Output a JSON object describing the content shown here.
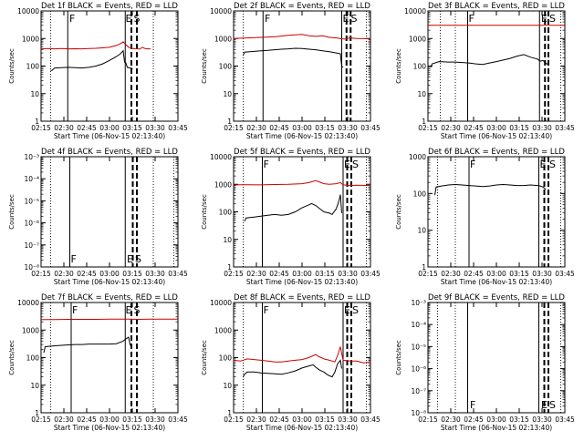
{
  "figure": {
    "xtick_labels": [
      "02:15",
      "02:30",
      "02:45",
      "03:00",
      "03:15",
      "03:30",
      "03:45"
    ],
    "xlabel": "Start Time (06-Nov-15 02:13:40)",
    "ylabel": "Counts/sec",
    "colors": {
      "events": "#000000",
      "lld": "#cc0000",
      "frame": "#000000"
    }
  },
  "chart_data": [
    {
      "type": "line",
      "title": "Det 1f BLACK = Events, RED = LLD",
      "yscale": "log",
      "ylim": [
        1,
        10000
      ],
      "ytick_labels": [
        "1",
        "10",
        "100",
        "1000",
        "10000"
      ],
      "xlim": [
        0,
        100
      ],
      "lld": [
        [
          0,
          420
        ],
        [
          5,
          430
        ],
        [
          10,
          420
        ],
        [
          15,
          430
        ],
        [
          20,
          420
        ],
        [
          25,
          425
        ],
        [
          30,
          420
        ],
        [
          35,
          430
        ],
        [
          40,
          440
        ],
        [
          45,
          460
        ],
        [
          50,
          480
        ],
        [
          55,
          560
        ],
        [
          58,
          650
        ],
        [
          60,
          760
        ],
        [
          62,
          600
        ],
        [
          64,
          480
        ],
        [
          66,
          450
        ],
        [
          68,
          420
        ],
        [
          70,
          440
        ],
        [
          72,
          410
        ],
        [
          74,
          480
        ],
        [
          76,
          430
        ],
        [
          78,
          420
        ],
        [
          80,
          420
        ]
      ],
      "events": [
        [
          7,
          70
        ],
        [
          8,
          70
        ],
        [
          10,
          85
        ],
        [
          15,
          88
        ],
        [
          20,
          90
        ],
        [
          25,
          88
        ],
        [
          30,
          85
        ],
        [
          35,
          90
        ],
        [
          40,
          100
        ],
        [
          45,
          120
        ],
        [
          50,
          160
        ],
        [
          55,
          220
        ],
        [
          58,
          280
        ],
        [
          60,
          360
        ],
        [
          61,
          140
        ],
        [
          62,
          130
        ],
        [
          63,
          90
        ],
        [
          65,
          85
        ],
        [
          67,
          80
        ]
      ],
      "annotations": {
        "solid": [
          19.5,
          61.5
        ],
        "dotted": [
          7,
          82
        ],
        "dashed": [
          66,
          70
        ],
        "letters": [
          {
            "text": "F",
            "pos": 20
          },
          {
            "text": "E",
            "pos": 61
          },
          {
            "text": "S",
            "pos": 67
          }
        ],
        "letters_row": "top"
      }
    },
    {
      "type": "line",
      "title": "Det 2f BLACK = Events, RED = LLD",
      "yscale": "log",
      "ylim": [
        1,
        10000
      ],
      "ytick_labels": [
        "1",
        "10",
        "100",
        "1000",
        "10000"
      ],
      "xlim": [
        0,
        100
      ],
      "lld": [
        [
          0,
          1000
        ],
        [
          10,
          1050
        ],
        [
          20,
          1100
        ],
        [
          30,
          1150
        ],
        [
          40,
          1300
        ],
        [
          45,
          1350
        ],
        [
          50,
          1400
        ],
        [
          55,
          1250
        ],
        [
          60,
          1200
        ],
        [
          65,
          1250
        ],
        [
          70,
          1100
        ],
        [
          75,
          1050
        ],
        [
          78,
          1000
        ],
        [
          81,
          950
        ],
        [
          85,
          1050
        ],
        [
          90,
          1000
        ],
        [
          100,
          980
        ]
      ],
      "events": [
        [
          7,
          240
        ],
        [
          8,
          320
        ],
        [
          15,
          340
        ],
        [
          20,
          360
        ],
        [
          25,
          370
        ],
        [
          30,
          390
        ],
        [
          35,
          410
        ],
        [
          40,
          420
        ],
        [
          45,
          440
        ],
        [
          50,
          430
        ],
        [
          55,
          410
        ],
        [
          60,
          390
        ],
        [
          65,
          360
        ],
        [
          70,
          330
        ],
        [
          75,
          300
        ],
        [
          78,
          280
        ],
        [
          79,
          100
        ],
        [
          80,
          90
        ]
      ],
      "annotations": {
        "solid": [
          21.5,
          79
        ],
        "dotted": [
          7,
          97
        ],
        "dashed": [
          82.5,
          85.5
        ],
        "letters": [
          {
            "text": "F",
            "pos": 22
          },
          {
            "text": "E",
            "pos": 79
          },
          {
            "text": "S",
            "pos": 85
          }
        ],
        "letters_row": "top"
      }
    },
    {
      "type": "line",
      "title": "Det 3f BLACK = Events, RED = LLD",
      "yscale": "log",
      "ylim": [
        1,
        10000
      ],
      "ytick_labels": [
        "1",
        "10",
        "100",
        "1000",
        "10000"
      ],
      "xlim": [
        0,
        100
      ],
      "lld": [
        [
          0,
          3000
        ],
        [
          100,
          3000
        ]
      ],
      "events": [
        [
          2,
          90
        ],
        [
          3,
          120
        ],
        [
          8,
          145
        ],
        [
          15,
          140
        ],
        [
          20,
          140
        ],
        [
          25,
          135
        ],
        [
          30,
          130
        ],
        [
          35,
          120
        ],
        [
          40,
          115
        ],
        [
          45,
          130
        ],
        [
          50,
          145
        ],
        [
          55,
          165
        ],
        [
          60,
          190
        ],
        [
          65,
          230
        ],
        [
          70,
          260
        ],
        [
          75,
          210
        ],
        [
          80,
          180
        ],
        [
          82,
          150
        ],
        [
          84,
          160
        ],
        [
          86,
          130
        ],
        [
          88,
          110
        ]
      ],
      "annotations": {
        "solid": [
          29,
          81.5
        ],
        "dotted": [
          9,
          20,
          97
        ],
        "dashed": [
          85.5,
          88
        ],
        "letters": [
          {
            "text": "F",
            "pos": 29
          },
          {
            "text": "E",
            "pos": 82
          },
          {
            "text": "S",
            "pos": 88
          }
        ],
        "letters_row": "top"
      }
    },
    {
      "type": "line",
      "title": "Det 4f BLACK = Events, RED = LLD",
      "yscale": "log",
      "ylim": [
        1e-08,
        0.001
      ],
      "ytick_labels": [
        "10⁻⁸",
        "10⁻⁷",
        "10⁻⁶",
        "10⁻⁵",
        "10⁻⁴",
        "10⁻³"
      ],
      "xlim": [
        0,
        100
      ],
      "lld": [],
      "events": [],
      "annotations": {
        "solid": [
          21,
          61.5
        ],
        "dotted": [
          7,
          82,
          97
        ],
        "dashed": [
          67,
          70
        ],
        "letters": [
          {
            "text": "F",
            "pos": 21
          },
          {
            "text": "E",
            "pos": 62
          },
          {
            "text": "S",
            "pos": 68
          }
        ],
        "letters_row": "bottom"
      }
    },
    {
      "type": "line",
      "title": "Det 5f BLACK = Events, RED = LLD",
      "yscale": "log",
      "ylim": [
        1,
        10000
      ],
      "ytick_labels": [
        "1",
        "10",
        "100",
        "1000",
        "10000"
      ],
      "xlim": [
        0,
        100
      ],
      "lld": [
        [
          0,
          950
        ],
        [
          10,
          960
        ],
        [
          20,
          950
        ],
        [
          30,
          980
        ],
        [
          40,
          1000
        ],
        [
          50,
          1050
        ],
        [
          55,
          1150
        ],
        [
          60,
          1350
        ],
        [
          63,
          1200
        ],
        [
          66,
          1050
        ],
        [
          70,
          1000
        ],
        [
          75,
          1050
        ],
        [
          78,
          1150
        ],
        [
          80,
          950
        ],
        [
          85,
          900
        ],
        [
          90,
          920
        ],
        [
          100,
          900
        ]
      ],
      "events": [
        [
          8,
          45
        ],
        [
          9,
          60
        ],
        [
          15,
          65
        ],
        [
          20,
          70
        ],
        [
          25,
          75
        ],
        [
          30,
          80
        ],
        [
          35,
          75
        ],
        [
          40,
          80
        ],
        [
          45,
          100
        ],
        [
          50,
          140
        ],
        [
          55,
          180
        ],
        [
          57,
          200
        ],
        [
          60,
          170
        ],
        [
          63,
          130
        ],
        [
          66,
          100
        ],
        [
          70,
          90
        ],
        [
          72,
          80
        ],
        [
          75,
          130
        ],
        [
          77,
          250
        ],
        [
          78,
          420
        ],
        [
          79,
          90
        ]
      ],
      "annotations": {
        "solid": [
          21,
          80
        ],
        "dotted": [
          7,
          97
        ],
        "dashed": [
          83,
          86
        ],
        "letters": [
          {
            "text": "F",
            "pos": 21
          },
          {
            "text": "E",
            "pos": 80
          },
          {
            "text": "S",
            "pos": 86
          }
        ],
        "letters_row": "top"
      }
    },
    {
      "type": "line",
      "title": "Det 6f BLACK = Events, RED = LLD",
      "yscale": "log",
      "ylim": [
        1,
        1000
      ],
      "ytick_labels": [
        "1",
        "10",
        "100",
        "1000"
      ],
      "xlim": [
        0,
        100
      ],
      "lld": [],
      "events": [
        [
          5,
          90
        ],
        [
          6,
          150
        ],
        [
          10,
          160
        ],
        [
          15,
          170
        ],
        [
          20,
          175
        ],
        [
          25,
          170
        ],
        [
          30,
          165
        ],
        [
          35,
          160
        ],
        [
          40,
          155
        ],
        [
          45,
          160
        ],
        [
          50,
          170
        ],
        [
          55,
          175
        ],
        [
          60,
          170
        ],
        [
          65,
          165
        ],
        [
          70,
          165
        ],
        [
          75,
          170
        ],
        [
          80,
          165
        ],
        [
          82,
          160
        ],
        [
          84,
          150
        ],
        [
          86,
          130
        ]
      ],
      "annotations": {
        "solid": [
          30,
          81
        ],
        "dotted": [
          7,
          20,
          97
        ],
        "dashed": [
          85,
          88
        ],
        "letters": [
          {
            "text": "F",
            "pos": 30
          },
          {
            "text": "E",
            "pos": 81
          },
          {
            "text": "S",
            "pos": 88
          }
        ],
        "letters_row": "top"
      }
    },
    {
      "type": "line",
      "title": "Det 7f BLACK = Events, RED = LLD",
      "yscale": "log",
      "ylim": [
        1,
        10000
      ],
      "ytick_labels": [
        "1",
        "10",
        "100",
        "1000",
        "10000"
      ],
      "xlim": [
        0,
        100
      ],
      "lld": [
        [
          0,
          2400
        ],
        [
          10,
          2400
        ],
        [
          20,
          2450
        ],
        [
          30,
          2450
        ],
        [
          40,
          2450
        ],
        [
          50,
          2500
        ],
        [
          60,
          2500
        ],
        [
          65,
          2500
        ],
        [
          70,
          2450
        ],
        [
          80,
          2500
        ],
        [
          100,
          2500
        ]
      ],
      "events": [
        [
          2,
          150
        ],
        [
          3,
          250
        ],
        [
          10,
          270
        ],
        [
          15,
          280
        ],
        [
          20,
          290
        ],
        [
          25,
          300
        ],
        [
          30,
          300
        ],
        [
          35,
          310
        ],
        [
          40,
          310
        ],
        [
          45,
          310
        ],
        [
          50,
          310
        ],
        [
          55,
          320
        ],
        [
          60,
          400
        ],
        [
          62,
          480
        ],
        [
          64,
          550
        ],
        [
          65,
          300
        ],
        [
          66,
          250
        ]
      ],
      "annotations": {
        "solid": [
          22,
          61.5
        ],
        "dotted": [
          7,
          82
        ],
        "dashed": [
          66,
          70
        ],
        "letters": [
          {
            "text": "F",
            "pos": 22
          },
          {
            "text": "E",
            "pos": 61
          },
          {
            "text": "S",
            "pos": 67
          }
        ],
        "letters_row": "top"
      }
    },
    {
      "type": "line",
      "title": "Det 8f BLACK = Events, RED = LLD",
      "yscale": "log",
      "ylim": [
        1,
        10000
      ],
      "ytick_labels": [
        "1",
        "10",
        "100",
        "1000",
        "10000"
      ],
      "xlim": [
        0,
        100
      ],
      "lld": [
        [
          0,
          80
        ],
        [
          5,
          75
        ],
        [
          10,
          90
        ],
        [
          15,
          85
        ],
        [
          20,
          80
        ],
        [
          25,
          75
        ],
        [
          30,
          70
        ],
        [
          35,
          70
        ],
        [
          40,
          75
        ],
        [
          45,
          80
        ],
        [
          50,
          85
        ],
        [
          55,
          100
        ],
        [
          60,
          130
        ],
        [
          62,
          110
        ],
        [
          64,
          100
        ],
        [
          66,
          90
        ],
        [
          68,
          85
        ],
        [
          70,
          80
        ],
        [
          72,
          75
        ],
        [
          74,
          70
        ],
        [
          76,
          120
        ],
        [
          78,
          250
        ],
        [
          80,
          80
        ],
        [
          85,
          75
        ],
        [
          90,
          75
        ],
        [
          95,
          65
        ],
        [
          100,
          70
        ]
      ],
      "events": [
        [
          7,
          20
        ],
        [
          8,
          25
        ],
        [
          10,
          30
        ],
        [
          15,
          30
        ],
        [
          20,
          28
        ],
        [
          25,
          27
        ],
        [
          30,
          26
        ],
        [
          35,
          25
        ],
        [
          40,
          28
        ],
        [
          45,
          33
        ],
        [
          50,
          42
        ],
        [
          55,
          50
        ],
        [
          58,
          55
        ],
        [
          60,
          45
        ],
        [
          63,
          35
        ],
        [
          66,
          30
        ],
        [
          68,
          25
        ],
        [
          70,
          22
        ],
        [
          72,
          20
        ],
        [
          74,
          30
        ],
        [
          76,
          60
        ],
        [
          78,
          80
        ],
        [
          79,
          40
        ]
      ],
      "annotations": {
        "solid": [
          21,
          80
        ],
        "dotted": [
          7,
          97
        ],
        "dashed": [
          83,
          86
        ],
        "letters": [
          {
            "text": "F",
            "pos": 21
          },
          {
            "text": "E",
            "pos": 80
          },
          {
            "text": "S",
            "pos": 86
          }
        ],
        "letters_row": "top"
      }
    },
    {
      "type": "line",
      "title": "Det 9f BLACK = Events, RED = LLD",
      "yscale": "log",
      "ylim": [
        1e-08,
        0.001
      ],
      "ytick_labels": [
        "10⁻⁸",
        "10⁻⁷",
        "10⁻⁶",
        "10⁻⁵",
        "10⁻⁴",
        "10⁻³"
      ],
      "xlim": [
        0,
        100
      ],
      "lld": [],
      "events": [],
      "annotations": {
        "solid": [
          29,
          81
        ],
        "dotted": [
          7,
          20,
          97
        ],
        "dashed": [
          85,
          88
        ],
        "letters": [
          {
            "text": "F",
            "pos": 30
          },
          {
            "text": "E",
            "pos": 82
          },
          {
            "text": "S",
            "pos": 88
          }
        ],
        "letters_row": "bottom"
      }
    }
  ]
}
